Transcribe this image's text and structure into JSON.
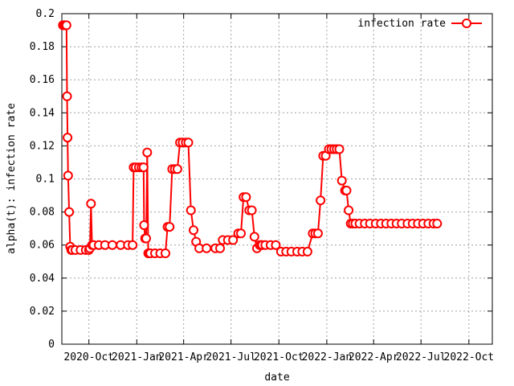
{
  "chart_data": {
    "type": "line",
    "title": "",
    "xlabel": "date",
    "ylabel": "alpha(t): infection rate",
    "ylim": [
      0,
      0.2
    ],
    "xlim": [
      "2020-08-10",
      "2022-11-15"
    ],
    "y_ticks": [
      0,
      0.02,
      0.04,
      0.06,
      0.08,
      0.1,
      0.12,
      0.14,
      0.16,
      0.18,
      0.2
    ],
    "y_tick_labels": [
      "0",
      "0.02",
      "0.04",
      "0.06",
      "0.08",
      "0.1",
      "0.12",
      "0.14",
      "0.16",
      "0.18",
      "0.2"
    ],
    "x_ticks": [
      "2020-10-01",
      "2021-01-01",
      "2021-04-01",
      "2021-07-01",
      "2021-10-01",
      "2022-01-01",
      "2022-04-01",
      "2022-07-01",
      "2022-10-01"
    ],
    "x_tick_labels": [
      "2020-Oct",
      "2021-Jan",
      "2021-Apr",
      "2021-Jul",
      "2021-Oct",
      "2022-Jan",
      "2022-Apr",
      "2022-Jul",
      "2022-Oct"
    ],
    "grid": true,
    "legend_position": "top-right",
    "series": [
      {
        "name": "infection rate",
        "color": "#ff0000",
        "marker": "open-circle",
        "x": [
          "2020-08-12",
          "2020-08-15",
          "2020-08-17",
          "2020-08-19",
          "2020-08-20",
          "2020-08-21",
          "2020-08-22",
          "2020-08-24",
          "2020-08-26",
          "2020-08-28",
          "2020-08-30",
          "2020-09-05",
          "2020-09-15",
          "2020-09-25",
          "2020-10-01",
          "2020-10-03",
          "2020-10-05",
          "2020-10-07",
          "2020-10-10",
          "2020-10-20",
          "2020-11-01",
          "2020-11-15",
          "2020-12-01",
          "2020-12-15",
          "2020-12-24",
          "2020-12-26",
          "2020-12-30",
          "2021-01-05",
          "2021-01-10",
          "2021-01-14",
          "2021-01-15",
          "2021-01-17",
          "2021-01-19",
          "2021-01-21",
          "2021-01-23",
          "2021-01-25",
          "2021-01-27",
          "2021-02-05",
          "2021-02-15",
          "2021-02-25",
          "2021-03-01",
          "2021-03-05",
          "2021-03-10",
          "2021-03-15",
          "2021-03-20",
          "2021-03-25",
          "2021-03-30",
          "2021-04-05",
          "2021-04-10",
          "2021-04-15",
          "2021-04-20",
          "2021-04-25",
          "2021-05-01",
          "2021-05-15",
          "2021-06-01",
          "2021-06-10",
          "2021-06-15",
          "2021-06-25",
          "2021-07-05",
          "2021-07-15",
          "2021-07-20",
          "2021-07-25",
          "2021-07-30",
          "2021-08-05",
          "2021-08-10",
          "2021-08-15",
          "2021-08-20",
          "2021-08-25",
          "2021-08-28",
          "2021-08-30",
          "2021-09-05",
          "2021-09-15",
          "2021-09-25",
          "2021-10-05",
          "2021-10-15",
          "2021-10-25",
          "2021-11-05",
          "2021-11-15",
          "2021-11-25",
          "2021-12-05",
          "2021-12-10",
          "2021-12-15",
          "2021-12-20",
          "2021-12-25",
          "2021-12-30",
          "2022-01-05",
          "2022-01-10",
          "2022-01-15",
          "2022-01-20",
          "2022-01-25",
          "2022-01-30",
          "2022-02-05",
          "2022-02-08",
          "2022-02-12",
          "2022-02-16",
          "2022-02-20",
          "2022-02-25",
          "2022-03-05",
          "2022-03-15",
          "2022-03-25",
          "2022-04-05",
          "2022-04-15",
          "2022-04-25",
          "2022-05-05",
          "2022-05-15",
          "2022-05-25",
          "2022-06-05",
          "2022-06-15",
          "2022-06-25",
          "2022-07-05",
          "2022-07-15",
          "2022-07-25",
          "2022-08-01"
        ],
        "y": [
          0.193,
          0.193,
          0.193,
          0.193,
          0.15,
          0.125,
          0.102,
          0.08,
          0.059,
          0.057,
          0.057,
          0.057,
          0.057,
          0.057,
          0.057,
          0.058,
          0.085,
          0.06,
          0.06,
          0.06,
          0.06,
          0.06,
          0.06,
          0.06,
          0.06,
          0.107,
          0.107,
          0.107,
          0.107,
          0.107,
          0.072,
          0.064,
          0.064,
          0.116,
          0.055,
          0.055,
          0.055,
          0.055,
          0.055,
          0.055,
          0.071,
          0.071,
          0.106,
          0.106,
          0.106,
          0.122,
          0.122,
          0.122,
          0.122,
          0.081,
          0.069,
          0.062,
          0.058,
          0.058,
          0.058,
          0.058,
          0.063,
          0.063,
          0.063,
          0.067,
          0.067,
          0.089,
          0.089,
          0.081,
          0.081,
          0.065,
          0.058,
          0.06,
          0.06,
          0.06,
          0.06,
          0.06,
          0.06,
          0.056,
          0.056,
          0.056,
          0.056,
          0.056,
          0.056,
          0.067,
          0.067,
          0.067,
          0.087,
          0.114,
          0.114,
          0.118,
          0.118,
          0.118,
          0.118,
          0.118,
          0.099,
          0.093,
          0.093,
          0.081,
          0.073,
          0.073,
          0.073,
          0.073,
          0.073,
          0.073,
          0.073,
          0.073,
          0.073,
          0.073,
          0.073,
          0.073,
          0.073,
          0.073,
          0.073,
          0.073,
          0.073,
          0.073,
          0.073
        ]
      }
    ]
  }
}
